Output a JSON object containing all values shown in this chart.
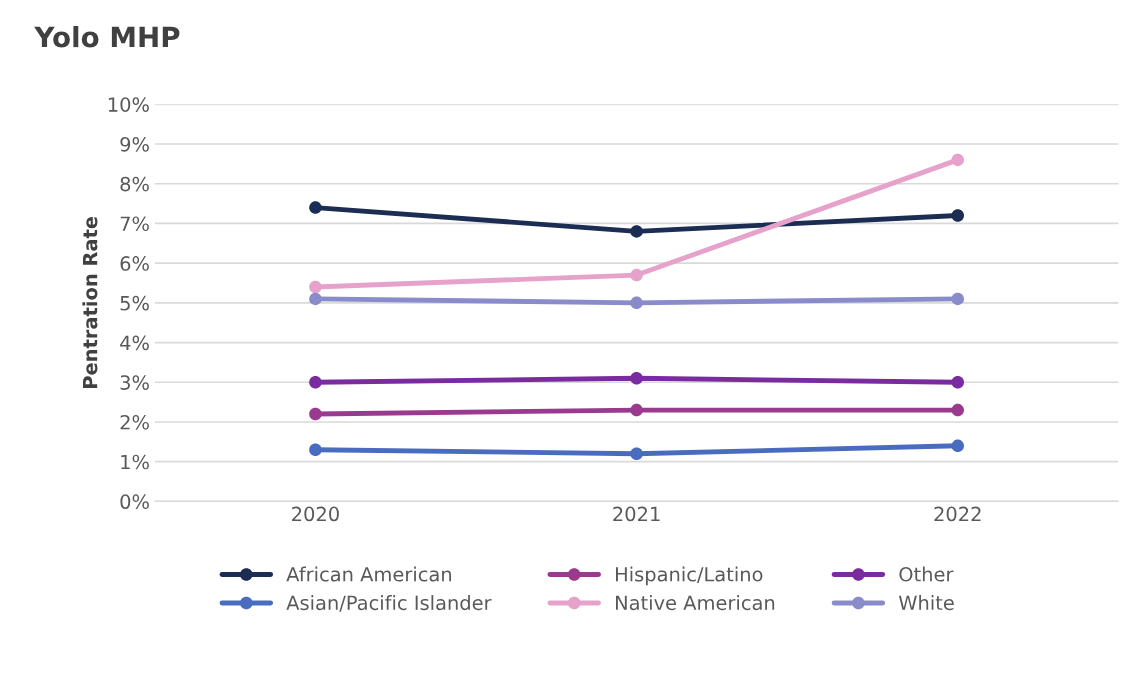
{
  "chart_data": {
    "type": "line",
    "title": "Yolo MHP",
    "ylabel": "Pentration Rate",
    "categories": [
      "2020",
      "2021",
      "2022"
    ],
    "series": [
      {
        "name": "African American",
        "color": "#1c2d54",
        "values": [
          7.4,
          6.8,
          7.2
        ]
      },
      {
        "name": "Asian/Pacific Islander",
        "color": "#4a6cc0",
        "values": [
          1.3,
          1.2,
          1.4
        ]
      },
      {
        "name": "Hispanic/Latino",
        "color": "#9a3a8e",
        "values": [
          2.2,
          2.3,
          2.3
        ]
      },
      {
        "name": "Native American",
        "color": "#e6a2cb",
        "values": [
          5.4,
          5.7,
          8.6
        ]
      },
      {
        "name": "Other",
        "color": "#7a2b9f",
        "values": [
          3.0,
          3.1,
          3.0
        ]
      },
      {
        "name": "White",
        "color": "#8a8bcb",
        "values": [
          5.1,
          5.0,
          5.1
        ]
      }
    ],
    "ylim": [
      0,
      10
    ],
    "yticks": [
      {
        "value": 0,
        "label": "0%"
      },
      {
        "value": 1,
        "label": "1%"
      },
      {
        "value": 2,
        "label": "2%"
      },
      {
        "value": 3,
        "label": "3%"
      },
      {
        "value": 4,
        "label": "4%"
      },
      {
        "value": 5,
        "label": "5%"
      },
      {
        "value": 6,
        "label": "6%"
      },
      {
        "value": 7,
        "label": "7%"
      },
      {
        "value": 8,
        "label": "8%"
      },
      {
        "value": 9,
        "label": "9%"
      },
      {
        "value": 10,
        "label": "10%"
      }
    ],
    "grid": "y",
    "legend": "bottom",
    "marker": "circle",
    "line_style": "solid"
  }
}
